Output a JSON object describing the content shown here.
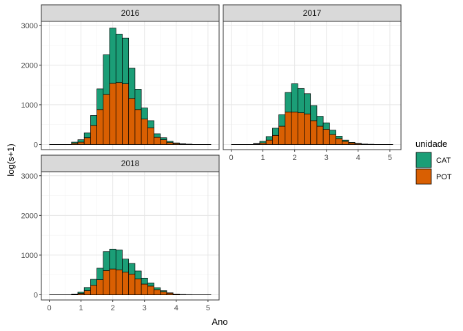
{
  "chart_data": {
    "type": "bar",
    "subtype": "faceted-stacked-histogram",
    "xlabel": "Ano",
    "ylabel": "log(s+1)",
    "x_ticks": [
      0,
      1,
      2,
      3,
      4,
      5
    ],
    "y_ticks": [
      0,
      1000,
      2000,
      3000
    ],
    "xlim": [
      -0.25,
      5.35
    ],
    "ylim": [
      -130,
      3100
    ],
    "grid": true,
    "legend": {
      "title": "unidade",
      "position": "right",
      "entries": [
        {
          "name": "CAT",
          "color": "#1b9e77"
        },
        {
          "name": "POT",
          "color": "#d95f02"
        }
      ]
    },
    "bin_width": 0.2,
    "bin_centers": [
      0.8,
      1.0,
      1.2,
      1.4,
      1.6,
      1.8,
      2.0,
      2.2,
      2.4,
      2.6,
      2.8,
      3.0,
      3.2,
      3.4,
      3.6,
      3.8,
      4.0,
      4.2,
      4.4
    ],
    "baseline_range": [
      0,
      5.1
    ],
    "facets": [
      {
        "label": "2016",
        "series": [
          {
            "name": "CAT",
            "values": [
              30,
              60,
              120,
              250,
              520,
              1000,
              1390,
              1220,
              1150,
              760,
              510,
              280,
              180,
              90,
              50,
              30,
              15,
              8,
              4
            ]
          },
          {
            "name": "POT",
            "values": [
              30,
              60,
              170,
              480,
              880,
              1260,
              1540,
              1560,
              1530,
              1160,
              880,
              640,
              420,
              180,
              120,
              50,
              25,
              10,
              5
            ]
          }
        ]
      },
      {
        "label": "2017",
        "series": [
          {
            "name": "CAT",
            "values": [
              12,
              40,
              90,
              180,
              290,
              490,
              710,
              610,
              510,
              380,
              250,
              165,
              110,
              60,
              30,
              15,
              8,
              3,
              2
            ]
          },
          {
            "name": "POT",
            "values": [
              12,
              40,
              110,
              230,
              460,
              820,
              820,
              800,
              770,
              600,
              460,
              380,
              250,
              150,
              80,
              40,
              20,
              8,
              4
            ]
          }
        ]
      },
      {
        "label": "2018",
        "series": [
          {
            "name": "CAT",
            "values": [
              10,
              35,
              80,
              150,
              290,
              480,
              500,
              500,
              330,
              270,
              200,
              150,
              80,
              50,
              25,
              10,
              5,
              3,
              2
            ]
          },
          {
            "name": "POT",
            "values": [
              10,
              35,
              105,
              240,
              380,
              610,
              650,
              630,
              570,
              520,
              400,
              270,
              220,
              130,
              80,
              40,
              15,
              6,
              3
            ]
          }
        ]
      }
    ]
  }
}
